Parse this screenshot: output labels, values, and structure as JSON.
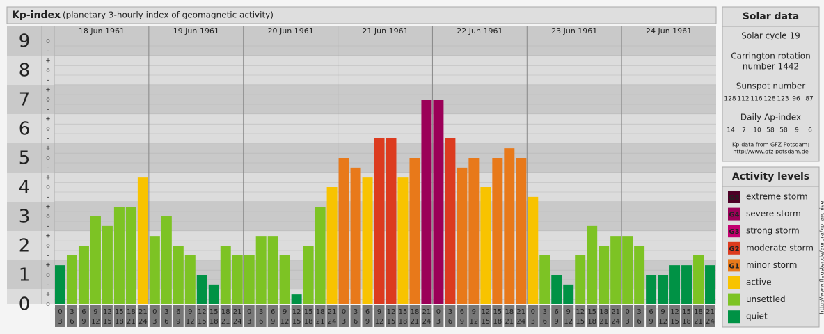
{
  "chart_data": {
    "type": "bar",
    "title": "Kp-index",
    "subtitle": "(planetary 3-hourly index of geomagnetic activity)",
    "ylim": [
      0,
      9.5
    ],
    "yticks": [
      0,
      1,
      2,
      3,
      4,
      5,
      6,
      7,
      8,
      9
    ],
    "minor_ticks": [
      {
        "value": 0,
        "label": "o"
      },
      {
        "value": 0.33,
        "label": "+"
      },
      {
        "value": 0.67,
        "label": "-"
      },
      {
        "value": 1,
        "label": "o"
      },
      {
        "value": 1.33,
        "label": "+"
      },
      {
        "value": 1.67,
        "label": "-"
      },
      {
        "value": 2,
        "label": "o"
      },
      {
        "value": 2.33,
        "label": "+"
      },
      {
        "value": 2.67,
        "label": "-"
      },
      {
        "value": 3,
        "label": "o"
      },
      {
        "value": 3.33,
        "label": "+"
      },
      {
        "value": 3.67,
        "label": "-"
      },
      {
        "value": 4,
        "label": "o"
      },
      {
        "value": 4.33,
        "label": "+"
      },
      {
        "value": 4.67,
        "label": "-"
      },
      {
        "value": 5,
        "label": "o"
      },
      {
        "value": 5.33,
        "label": "+"
      },
      {
        "value": 5.67,
        "label": "-"
      },
      {
        "value": 6,
        "label": "o"
      },
      {
        "value": 6.33,
        "label": "+"
      },
      {
        "value": 6.67,
        "label": "-"
      },
      {
        "value": 7,
        "label": "o"
      },
      {
        "value": 7.33,
        "label": "+"
      },
      {
        "value": 7.67,
        "label": "-"
      },
      {
        "value": 8,
        "label": "o"
      },
      {
        "value": 8.33,
        "label": "+"
      },
      {
        "value": 8.67,
        "label": "-"
      },
      {
        "value": 9,
        "label": "o"
      }
    ],
    "hours": [
      0,
      3,
      6,
      9,
      12,
      15,
      18,
      21,
      24
    ],
    "days": [
      {
        "date": "18 Jun 1961",
        "values": [
          1.33,
          1.67,
          2,
          3,
          2.67,
          3.33,
          3.33,
          4.33
        ],
        "colors": [
          "#009245",
          "#7dc324",
          "#7dc324",
          "#7dc324",
          "#7dc324",
          "#7dc324",
          "#7dc324",
          "#f8c300"
        ]
      },
      {
        "date": "19 Jun 1961",
        "values": [
          2.33,
          3,
          2,
          1.67,
          1,
          0.67,
          2,
          1.67
        ],
        "colors": [
          "#7dc324",
          "#7dc324",
          "#7dc324",
          "#7dc324",
          "#009245",
          "#009245",
          "#7dc324",
          "#7dc324"
        ]
      },
      {
        "date": "20 Jun 1961",
        "values": [
          1.67,
          2.33,
          2.33,
          1.67,
          0.33,
          2,
          3.33,
          4
        ],
        "colors": [
          "#7dc324",
          "#7dc324",
          "#7dc324",
          "#7dc324",
          "#009245",
          "#7dc324",
          "#7dc324",
          "#f8c300"
        ]
      },
      {
        "date": "21 Jun 1961",
        "values": [
          5,
          4.67,
          4.33,
          5.67,
          5.67,
          4.33,
          5,
          7
        ],
        "colors": [
          "#e8791a",
          "#e8791a",
          "#f8c300",
          "#dc3b1f",
          "#dc3b1f",
          "#f8c300",
          "#e8791a",
          "#9b0058"
        ]
      },
      {
        "date": "22 Jun 1961",
        "values": [
          7,
          5.67,
          4.67,
          5,
          4,
          5,
          5.33,
          5
        ],
        "colors": [
          "#9b0058",
          "#dc3b1f",
          "#e8791a",
          "#e8791a",
          "#f8c300",
          "#e8791a",
          "#e8791a",
          "#e8791a"
        ]
      },
      {
        "date": "23 Jun 1961",
        "values": [
          3.67,
          1.67,
          1,
          0.67,
          1.67,
          2.67,
          2,
          2.33
        ],
        "colors": [
          "#f8c300",
          "#7dc324",
          "#009245",
          "#009245",
          "#7dc324",
          "#7dc324",
          "#7dc324",
          "#7dc324"
        ]
      },
      {
        "date": "24 Jun 1961",
        "values": [
          2.33,
          2,
          1,
          1,
          1.33,
          1.33,
          1.67,
          1.33
        ],
        "colors": [
          "#7dc324",
          "#7dc324",
          "#009245",
          "#009245",
          "#009245",
          "#009245",
          "#7dc324",
          "#009245"
        ]
      }
    ],
    "solar_data": {
      "title": "Solar data",
      "solar_cycle": "Solar cycle 19",
      "carrington": [
        "Carrington rotation",
        "number 1442"
      ],
      "sunspot_title": "Sunspot number",
      "sunspot": [
        128,
        112,
        116,
        128,
        123,
        96,
        87
      ],
      "ap_title": "Daily Ap-index",
      "ap": [
        14,
        7,
        10,
        58,
        58,
        9,
        6
      ],
      "source": [
        "Kp-data from GFZ Potsdam:",
        "http://www.gfz-potsdam.de"
      ]
    },
    "legend": {
      "title": "Activity levels",
      "items": [
        {
          "code": "G5",
          "name": "extreme storm",
          "color": "#4d0026"
        },
        {
          "code": "G4",
          "name": "severe storm",
          "color": "#9b0058"
        },
        {
          "code": "G3",
          "name": "strong storm",
          "color": "#c2006f"
        },
        {
          "code": "G2",
          "name": "moderate storm",
          "color": "#dc3b1f"
        },
        {
          "code": "G1",
          "name": "minor storm",
          "color": "#e8791a"
        },
        {
          "name": "active",
          "color": "#f8c300"
        },
        {
          "name": "unsettled",
          "color": "#7dc324"
        },
        {
          "name": "quiet",
          "color": "#009245"
        }
      ]
    },
    "credit": "http://www.fleuster.de/aurora/kp_archive"
  }
}
